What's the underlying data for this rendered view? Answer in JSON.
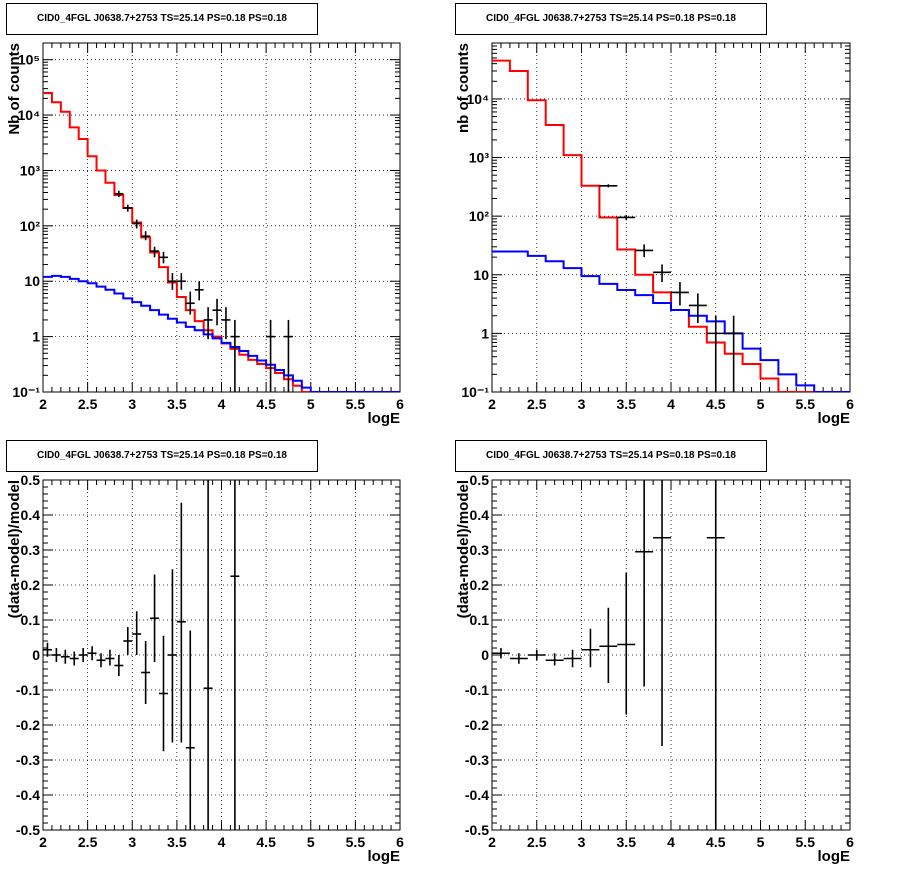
{
  "colors": {
    "data": "#000000",
    "model_total": "#ff0000",
    "model_bkg": "#0000ff",
    "grid": "#000000"
  },
  "chart_data": [
    {
      "type": "histogram",
      "title": "CID0_4FGL J0638.7+2753 TS=25.14 PS=0.18 PS=0.18",
      "xlabel": "logE",
      "ylabel": "Nb of counts",
      "xlim": [
        2,
        6
      ],
      "ylim": [
        0.1,
        200000
      ],
      "yscale": "log",
      "grid": true,
      "xticks": [
        "2",
        "2.5",
        "3",
        "3.5",
        "4",
        "4.5",
        "5",
        "5.5",
        "6"
      ],
      "yticks": [
        "10⁻¹",
        "1",
        "10",
        "10²",
        "10³",
        "10⁴",
        "10⁵"
      ],
      "bin_edges": [
        2.0,
        2.1,
        2.2,
        2.3,
        2.4,
        2.5,
        2.6,
        2.7,
        2.8,
        2.9,
        3.0,
        3.1,
        3.2,
        3.3,
        3.4,
        3.5,
        3.6,
        3.7,
        3.8,
        3.9,
        4.0,
        4.1,
        4.2,
        4.3,
        4.4,
        4.5,
        4.6,
        4.7,
        4.8,
        4.9,
        5.0,
        5.1,
        5.2,
        5.3,
        5.4,
        5.5,
        5.6,
        5.7,
        5.8,
        5.9,
        6.0
      ],
      "series": [
        {
          "name": "",
          "color": "#ff0000",
          "style": "step",
          "values": [
            25000,
            17000,
            11500,
            6000,
            3700,
            1800,
            1000,
            600,
            360,
            210,
            115,
            62,
            33,
            18,
            9.5,
            5.2,
            3.0,
            1.9,
            1.3,
            1.0,
            0.75,
            0.6,
            0.47,
            0.38,
            0.32,
            0.27,
            0.22,
            0.17,
            0.13,
            0.1,
            0.1,
            0.1,
            0.1,
            0.1,
            0.1,
            0.1,
            0.1,
            0.1,
            0.1,
            0.1
          ]
        },
        {
          "name": "",
          "color": "#0000ff",
          "style": "step",
          "values": [
            12,
            12.5,
            12,
            11,
            10,
            9.2,
            8,
            7,
            6,
            4.9,
            4.2,
            3.6,
            3.0,
            2.5,
            2.1,
            1.8,
            1.5,
            1.3,
            1.1,
            0.93,
            0.77,
            0.65,
            0.55,
            0.45,
            0.37,
            0.31,
            0.25,
            0.2,
            0.16,
            0.12,
            0.1,
            0.1,
            0.1,
            0.1,
            0.1,
            0.1,
            0.1,
            0.1,
            0.1,
            0.1
          ]
        }
      ],
      "points": [
        {
          "x": 2.85,
          "xerr": 0.05,
          "y": 380,
          "ylo": 330,
          "yhi": 430
        },
        {
          "x": 2.95,
          "xerr": 0.05,
          "y": 210,
          "ylo": 180,
          "yhi": 240
        },
        {
          "x": 3.05,
          "xerr": 0.05,
          "y": 110,
          "ylo": 90,
          "yhi": 130
        },
        {
          "x": 3.15,
          "xerr": 0.05,
          "y": 65,
          "ylo": 55,
          "yhi": 80
        },
        {
          "x": 3.25,
          "xerr": 0.05,
          "y": 35,
          "ylo": 27,
          "yhi": 42
        },
        {
          "x": 3.35,
          "xerr": 0.05,
          "y": 27,
          "ylo": 21,
          "yhi": 34
        },
        {
          "x": 3.45,
          "xerr": 0.05,
          "y": 10,
          "ylo": 7,
          "yhi": 14
        },
        {
          "x": 3.55,
          "xerr": 0.05,
          "y": 10,
          "ylo": 7,
          "yhi": 14
        },
        {
          "x": 3.65,
          "xerr": 0.05,
          "y": 4,
          "ylo": 2.5,
          "yhi": 6.5
        },
        {
          "x": 3.75,
          "xerr": 0.05,
          "y": 7,
          "ylo": 4.5,
          "yhi": 10
        },
        {
          "x": 3.85,
          "xerr": 0.05,
          "y": 2,
          "ylo": 0.9,
          "yhi": 3.4
        },
        {
          "x": 3.95,
          "xerr": 0.05,
          "y": 3,
          "ylo": 1.6,
          "yhi": 4.8
        },
        {
          "x": 4.05,
          "xerr": 0.05,
          "y": 2,
          "ylo": 0.9,
          "yhi": 3.4
        },
        {
          "x": 4.15,
          "xerr": 0.05,
          "y": 1,
          "ylo": 0.1,
          "yhi": 2.0
        },
        {
          "x": 4.55,
          "xerr": 0.05,
          "y": 1,
          "ylo": 0.1,
          "yhi": 2.0
        },
        {
          "x": 4.75,
          "xerr": 0.05,
          "y": 1,
          "ylo": 0.1,
          "yhi": 2.0
        }
      ]
    },
    {
      "type": "histogram",
      "title": "CID0_4FGL J0638.7+2753 TS=25.14 PS=0.18 PS=0.18",
      "xlabel": "logE",
      "ylabel": "nb of counts",
      "xlim": [
        2,
        6
      ],
      "ylim": [
        0.1,
        90000
      ],
      "yscale": "log",
      "grid": true,
      "xticks": [
        "2",
        "2.5",
        "3",
        "3.5",
        "4",
        "4.5",
        "5",
        "5.5",
        "6"
      ],
      "yticks": [
        "10⁻¹",
        "1",
        "10",
        "10²",
        "10³",
        "10⁴"
      ],
      "bin_edges": [
        2.0,
        2.2,
        2.4,
        2.6,
        2.8,
        3.0,
        3.2,
        3.4,
        3.6,
        3.8,
        4.0,
        4.2,
        4.4,
        4.6,
        4.8,
        5.0,
        5.2,
        5.4,
        5.6,
        5.8,
        6.0
      ],
      "series": [
        {
          "name": "",
          "color": "#ff0000",
          "style": "step",
          "values": [
            45000,
            30000,
            9500,
            3600,
            1100,
            330,
            95,
            27,
            10,
            5,
            2.5,
            1.3,
            0.7,
            0.45,
            0.3,
            0.17,
            0.1,
            0.1,
            0.1,
            0.1
          ]
        },
        {
          "name": "",
          "color": "#0000ff",
          "style": "step",
          "values": [
            25,
            25,
            21,
            17,
            13,
            9.5,
            7,
            5.5,
            4.5,
            3.3,
            2.5,
            2.0,
            1.6,
            1.0,
            0.55,
            0.35,
            0.2,
            0.13,
            0.1,
            0.1
          ]
        }
      ],
      "points": [
        {
          "x": 3.3,
          "xerr": 0.1,
          "y": 330,
          "ylo": 310,
          "yhi": 350
        },
        {
          "x": 3.5,
          "xerr": 0.1,
          "y": 95,
          "ylo": 85,
          "yhi": 105
        },
        {
          "x": 3.7,
          "xerr": 0.1,
          "y": 26,
          "ylo": 20,
          "yhi": 33
        },
        {
          "x": 3.9,
          "xerr": 0.1,
          "y": 11,
          "ylo": 7.5,
          "yhi": 15
        },
        {
          "x": 4.1,
          "xerr": 0.1,
          "y": 5,
          "ylo": 3,
          "yhi": 7.5
        },
        {
          "x": 4.3,
          "xerr": 0.1,
          "y": 3,
          "ylo": 1.5,
          "yhi": 4.8
        },
        {
          "x": 4.5,
          "xerr": 0.1,
          "y": 1,
          "ylo": 0.1,
          "yhi": 2.0
        },
        {
          "x": 4.7,
          "xerr": 0.1,
          "y": 1,
          "ylo": 0.1,
          "yhi": 2.0
        }
      ]
    },
    {
      "type": "scatter",
      "title": "CID0_4FGL J0638.7+2753 TS=25.14 PS=0.18 PS=0.18",
      "xlabel": "logE",
      "ylabel": "(data-model)/model",
      "xlim": [
        2,
        6
      ],
      "ylim": [
        -0.5,
        0.5
      ],
      "yscale": "linear",
      "grid": true,
      "xticks": [
        "2",
        "2.5",
        "3",
        "3.5",
        "4",
        "4.5",
        "5",
        "5.5",
        "6"
      ],
      "yticks": [
        "-0.5",
        "-0.4",
        "-0.3",
        "-0.2",
        "-0.1",
        "0",
        "0.1",
        "0.2",
        "0.3",
        "0.4",
        "0.5"
      ],
      "points": [
        {
          "x": 2.05,
          "xerr": 0.05,
          "y": 0.015,
          "ylo": -0.005,
          "yhi": 0.035
        },
        {
          "x": 2.15,
          "xerr": 0.05,
          "y": 0.0,
          "ylo": -0.02,
          "yhi": 0.02
        },
        {
          "x": 2.25,
          "xerr": 0.05,
          "y": -0.005,
          "ylo": -0.025,
          "yhi": 0.015
        },
        {
          "x": 2.35,
          "xerr": 0.05,
          "y": -0.01,
          "ylo": -0.03,
          "yhi": 0.01
        },
        {
          "x": 2.45,
          "xerr": 0.05,
          "y": 0.0,
          "ylo": -0.02,
          "yhi": 0.02
        },
        {
          "x": 2.55,
          "xerr": 0.05,
          "y": 0.005,
          "ylo": -0.015,
          "yhi": 0.025
        },
        {
          "x": 2.65,
          "xerr": 0.05,
          "y": -0.015,
          "ylo": -0.035,
          "yhi": 0.005
        },
        {
          "x": 2.75,
          "xerr": 0.05,
          "y": -0.01,
          "ylo": -0.03,
          "yhi": 0.015
        },
        {
          "x": 2.85,
          "xerr": 0.05,
          "y": -0.03,
          "ylo": -0.06,
          "yhi": 0.0
        },
        {
          "x": 2.95,
          "xerr": 0.05,
          "y": 0.04,
          "ylo": 0.0,
          "yhi": 0.08
        },
        {
          "x": 3.05,
          "xerr": 0.05,
          "y": 0.06,
          "ylo": 0.0,
          "yhi": 0.125
        },
        {
          "x": 3.15,
          "xerr": 0.05,
          "y": -0.05,
          "ylo": -0.14,
          "yhi": 0.04
        },
        {
          "x": 3.25,
          "xerr": 0.05,
          "y": 0.105,
          "ylo": -0.02,
          "yhi": 0.23
        },
        {
          "x": 3.35,
          "xerr": 0.05,
          "y": -0.11,
          "ylo": -0.275,
          "yhi": 0.055
        },
        {
          "x": 3.45,
          "xerr": 0.05,
          "y": 0.0,
          "ylo": -0.25,
          "yhi": 0.245
        },
        {
          "x": 3.55,
          "xerr": 0.05,
          "y": 0.095,
          "ylo": -0.25,
          "yhi": 0.435
        },
        {
          "x": 3.65,
          "xerr": 0.05,
          "y": -0.265,
          "ylo": -0.5,
          "yhi": 0.07
        },
        {
          "x": 3.85,
          "xerr": 0.05,
          "y": -0.095,
          "ylo": -0.5,
          "yhi": 0.5
        },
        {
          "x": 4.15,
          "xerr": 0.05,
          "y": 0.225,
          "ylo": -0.5,
          "yhi": 0.5
        }
      ]
    },
    {
      "type": "scatter",
      "title": "CID0_4FGL J0638.7+2753 TS=25.14 PS=0.18 PS=0.18",
      "xlabel": "logE",
      "ylabel": "(data-model)/model",
      "xlim": [
        2,
        6
      ],
      "ylim": [
        -0.5,
        0.5
      ],
      "yscale": "linear",
      "grid": true,
      "xticks": [
        "2",
        "2.5",
        "3",
        "3.5",
        "4",
        "4.5",
        "5",
        "5.5",
        "6"
      ],
      "yticks": [
        "-0.5",
        "-0.4",
        "-0.3",
        "-0.2",
        "-0.1",
        "0",
        "0.1",
        "0.2",
        "0.3",
        "0.4",
        "0.5"
      ],
      "points": [
        {
          "x": 2.1,
          "xerr": 0.1,
          "y": 0.005,
          "ylo": -0.01,
          "yhi": 0.02
        },
        {
          "x": 2.3,
          "xerr": 0.1,
          "y": -0.01,
          "ylo": -0.025,
          "yhi": 0.005
        },
        {
          "x": 2.5,
          "xerr": 0.1,
          "y": 0.0,
          "ylo": -0.015,
          "yhi": 0.015
        },
        {
          "x": 2.7,
          "xerr": 0.1,
          "y": -0.015,
          "ylo": -0.03,
          "yhi": 0.005
        },
        {
          "x": 2.9,
          "xerr": 0.1,
          "y": -0.01,
          "ylo": -0.035,
          "yhi": 0.015
        },
        {
          "x": 3.1,
          "xerr": 0.1,
          "y": 0.015,
          "ylo": -0.035,
          "yhi": 0.075
        },
        {
          "x": 3.3,
          "xerr": 0.1,
          "y": 0.025,
          "ylo": -0.08,
          "yhi": 0.135
        },
        {
          "x": 3.5,
          "xerr": 0.1,
          "y": 0.03,
          "ylo": -0.17,
          "yhi": 0.235
        },
        {
          "x": 3.7,
          "xerr": 0.1,
          "y": 0.295,
          "ylo": -0.09,
          "yhi": 0.5
        },
        {
          "x": 3.9,
          "xerr": 0.1,
          "y": 0.335,
          "ylo": -0.26,
          "yhi": 0.5
        },
        {
          "x": 4.5,
          "xerr": 0.1,
          "y": 0.335,
          "ylo": -0.5,
          "yhi": 0.5
        }
      ]
    }
  ]
}
